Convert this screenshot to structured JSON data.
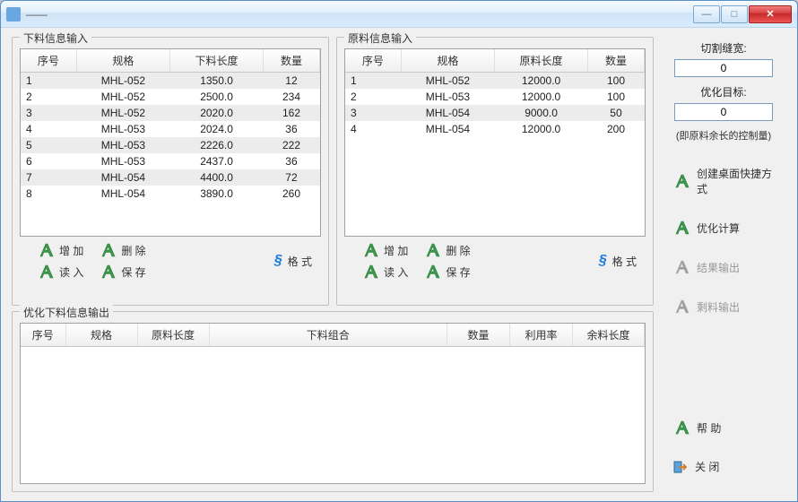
{
  "window": {
    "title": "——"
  },
  "group_input_left": {
    "legend": "下料信息输入",
    "columns": [
      "序号",
      "规格",
      "下料长度",
      "数量"
    ],
    "rows": [
      [
        "1",
        "MHL-052",
        "1350.0",
        "12"
      ],
      [
        "2",
        "MHL-052",
        "2500.0",
        "234"
      ],
      [
        "3",
        "MHL-052",
        "2020.0",
        "162"
      ],
      [
        "4",
        "MHL-053",
        "2024.0",
        "36"
      ],
      [
        "5",
        "MHL-053",
        "2226.0",
        "222"
      ],
      [
        "6",
        "MHL-053",
        "2437.0",
        "36"
      ],
      [
        "7",
        "MHL-054",
        "4400.0",
        "72"
      ],
      [
        "8",
        "MHL-054",
        "3890.0",
        "260"
      ]
    ]
  },
  "group_input_right": {
    "legend": "原料信息输入",
    "columns": [
      "序号",
      "规格",
      "原料长度",
      "数量"
    ],
    "rows": [
      [
        "1",
        "MHL-052",
        "12000.0",
        "100"
      ],
      [
        "2",
        "MHL-053",
        "12000.0",
        "100"
      ],
      [
        "3",
        "MHL-054",
        "9000.0",
        "50"
      ],
      [
        "4",
        "MHL-054",
        "12000.0",
        "200"
      ]
    ]
  },
  "actions": {
    "add": "增 加",
    "delete": "删 除",
    "read": "读 入",
    "save": "保 存",
    "format": "格 式"
  },
  "group_output": {
    "legend": "优化下料信息输出",
    "columns": [
      "序号",
      "规格",
      "原料长度",
      "下料组合",
      "数量",
      "利用率",
      "余料长度"
    ]
  },
  "sidebar": {
    "cut_width_label": "切割缝宽:",
    "cut_width_value": "0",
    "opt_target_label": "优化目标:",
    "opt_target_value": "0",
    "opt_target_note": "(即原料余长的控制量)",
    "shortcut": "创建桌面快捷方式",
    "optimize": "优化计算",
    "result_out": "结果输出",
    "remain_out": "剩料输出",
    "help": "帮 助",
    "close": "关 闭"
  },
  "colors": {
    "icon_green": "#3a9a4a",
    "icon_green_dark": "#2d7a3a",
    "icon_gray": "#9a9a9a"
  }
}
